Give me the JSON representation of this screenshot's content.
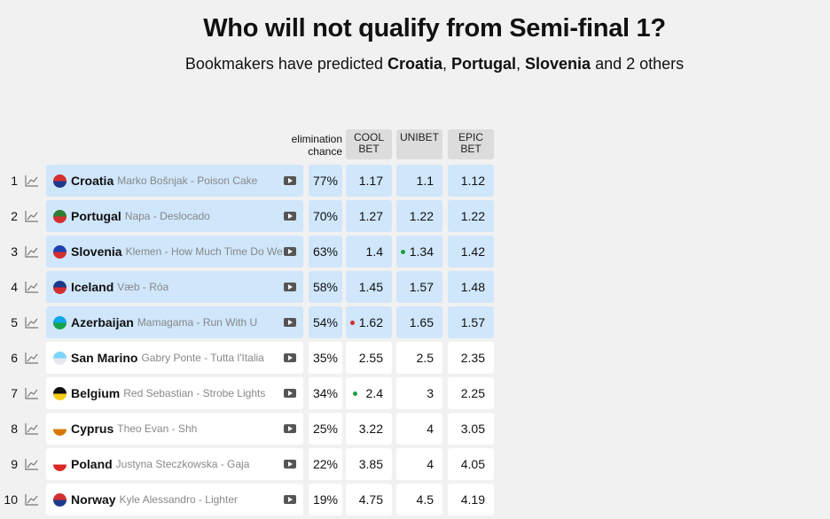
{
  "header": {
    "title": "Who will not qualify from Semi-final 1?",
    "subtitle": [
      {
        "text": "Bookmakers have predicted "
      },
      {
        "text": "Croatia",
        "bold": true
      },
      {
        "text": ", "
      },
      {
        "text": "Portugal",
        "bold": true
      },
      {
        "text": ", "
      },
      {
        "text": "Slovenia",
        "bold": true
      },
      {
        "text": " and 2 others"
      }
    ]
  },
  "table": {
    "columns": {
      "chance": "elimination chance",
      "bookmakers": [
        "COOL BET",
        "UNIBET",
        "EPIC BET"
      ]
    },
    "rows": [
      {
        "rank": 1,
        "country": "Croatia",
        "artist_song": "Marko Bošnjak - Poison Cake",
        "chance": "77%",
        "odds": [
          1.17,
          1.1,
          1.12
        ],
        "highlight": true,
        "flag_colors": [
          "#d32f2f",
          "#1e3a8a"
        ]
      },
      {
        "rank": 2,
        "country": "Portugal",
        "artist_song": "Napa - Deslocado",
        "chance": "70%",
        "odds": [
          1.27,
          1.22,
          1.22
        ],
        "highlight": true,
        "flag_colors": [
          "#2e7d32",
          "#d32f2f"
        ]
      },
      {
        "rank": 3,
        "country": "Slovenia",
        "artist_song": "Klemen - How Much Time Do We ...",
        "chance": "63%",
        "odds": [
          1.4,
          1.34,
          1.42
        ],
        "highlight": true,
        "flag_colors": [
          "#1e40af",
          "#d32f2f"
        ],
        "dot": {
          "index": 1,
          "color": "#1e9e3e"
        }
      },
      {
        "rank": 4,
        "country": "Iceland",
        "artist_song": "Væb - Róa",
        "chance": "58%",
        "odds": [
          1.45,
          1.57,
          1.48
        ],
        "highlight": true,
        "flag_colors": [
          "#1e3a8a",
          "#d32f2f"
        ]
      },
      {
        "rank": 5,
        "country": "Azerbaijan",
        "artist_song": "Mamagama - Run With U",
        "chance": "54%",
        "odds": [
          1.62,
          1.65,
          1.57
        ],
        "highlight": true,
        "flag_colors": [
          "#0ea5e9",
          "#16a34a"
        ],
        "dot": {
          "index": 0,
          "color": "#d32f2f"
        }
      },
      {
        "rank": 6,
        "country": "San Marino",
        "artist_song": "Gabry Ponte - Tutta l'Italia",
        "chance": "35%",
        "odds": [
          2.55,
          2.5,
          2.35
        ],
        "highlight": false,
        "flag_colors": [
          "#7dd3fc",
          "#e5e7eb"
        ]
      },
      {
        "rank": 7,
        "country": "Belgium",
        "artist_song": "Red Sebastian - Strobe Lights",
        "chance": "34%",
        "odds": [
          2.4,
          3,
          2.25
        ],
        "highlight": false,
        "flag_colors": [
          "#111111",
          "#facc15"
        ],
        "dot": {
          "index": 0,
          "color": "#1e9e3e"
        }
      },
      {
        "rank": 8,
        "country": "Cyprus",
        "artist_song": "Theo Evan - Shh",
        "chance": "25%",
        "odds": [
          3.22,
          4,
          3.05
        ],
        "highlight": false,
        "flag_colors": [
          "#ffffff",
          "#d97706"
        ]
      },
      {
        "rank": 9,
        "country": "Poland",
        "artist_song": "Justyna Steczkowska - Gaja",
        "chance": "22%",
        "odds": [
          3.85,
          4,
          4.05
        ],
        "highlight": false,
        "flag_colors": [
          "#ffffff",
          "#dc2626"
        ]
      },
      {
        "rank": 10,
        "country": "Norway",
        "artist_song": "Kyle Alessandro - Lighter",
        "chance": "19%",
        "odds": [
          4.75,
          4.5,
          4.19
        ],
        "highlight": false,
        "flag_colors": [
          "#d32f2f",
          "#1e3a8a"
        ]
      }
    ]
  }
}
